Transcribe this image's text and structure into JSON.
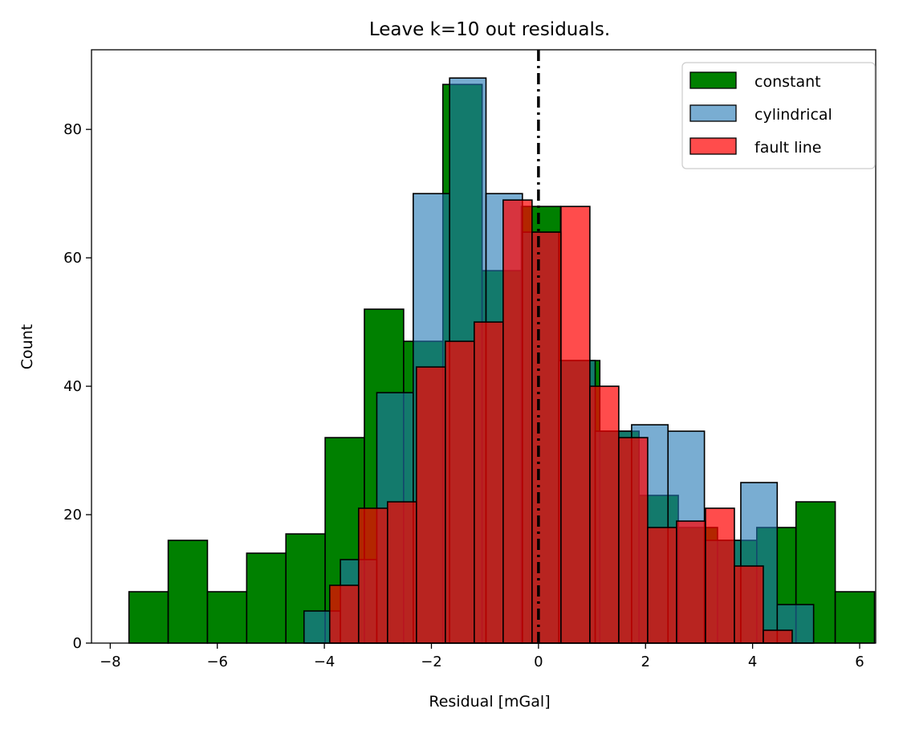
{
  "chart_data": {
    "type": "bar",
    "subtype": "overlaid-histogram",
    "title": "Leave k=10 out residuals.",
    "xlabel": "Residual [mGal]",
    "ylabel": "Count",
    "xlim": [
      -8.35,
      6.3
    ],
    "ylim": [
      0,
      92.4
    ],
    "xticks": [
      -8,
      -6,
      -4,
      -2,
      0,
      2,
      4,
      6
    ],
    "yticks": [
      0,
      20,
      40,
      60,
      80
    ],
    "grid": false,
    "legend_position": "upper right",
    "reference_line": {
      "x": 0,
      "style": "dash-dot",
      "color": "#000000"
    },
    "series": [
      {
        "name": "constant",
        "color": "#008000",
        "opacity": 1.0,
        "bin_start": -7.65,
        "bin_width": 0.733,
        "counts": [
          8,
          16,
          8,
          14,
          17,
          32,
          52,
          47,
          87,
          58,
          68,
          44,
          33,
          23,
          18,
          16,
          18,
          22,
          8
        ]
      },
      {
        "name": "cylindrical",
        "color": "#1f77b4",
        "opacity": 0.6,
        "bin_start": -4.38,
        "bin_width": 0.68,
        "counts": [
          5,
          13,
          39,
          70,
          88,
          70,
          64,
          44,
          33,
          34,
          33,
          16,
          25,
          6
        ]
      },
      {
        "name": "fault line",
        "color": "#ff0000",
        "opacity": 0.7,
        "bin_start": -3.9,
        "bin_width": 0.54,
        "counts": [
          9,
          21,
          22,
          43,
          47,
          50,
          69,
          64,
          68,
          40,
          32,
          18,
          19,
          21,
          12,
          2
        ]
      }
    ]
  }
}
